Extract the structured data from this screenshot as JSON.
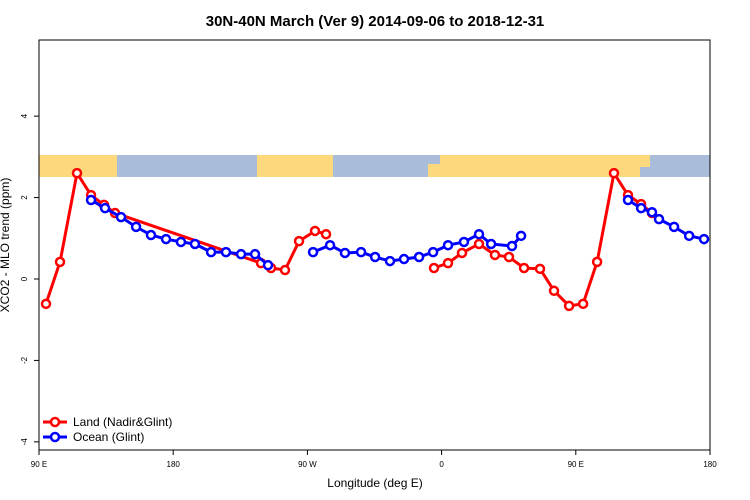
{
  "chart_data": {
    "type": "line",
    "title": "30N-40N March (Ver 9)   2014-09-06 to 2018-12-31",
    "x_label": "Longitude (deg E)",
    "y_label": "XCO2 - MLO trend (ppm)",
    "xlim": [
      90,
      540
    ],
    "xticks": [
      {
        "value": 90,
        "label": "90 E"
      },
      {
        "value": 180,
        "label": "180"
      },
      {
        "value": 270,
        "label": "90 W"
      },
      {
        "value": 360,
        "label": "0"
      },
      {
        "value": 450,
        "label": "90 E"
      },
      {
        "value": 540,
        "label": "180"
      }
    ],
    "ylim": [
      -4.2,
      5.87
    ],
    "yticks": [
      -4,
      -2,
      0,
      2,
      4
    ],
    "legend": "bottom-left",
    "series": [
      {
        "name": "Land (Nadir&Glint)",
        "color": "#ff0000",
        "x": [
          94.7,
          104.1,
          115.5,
          124.9,
          133.6,
          141,
          238.9,
          245.6,
          255,
          264.4,
          275.1,
          282.5,
          null,
          354.9,
          364.3,
          373.7,
          385.1,
          395.8,
          405.2,
          415.3,
          426,
          435.4,
          445.5,
          454.9,
          464.3,
          475.6,
          485,
          493.8,
          501.1
        ],
        "values": [
          -0.61,
          0.42,
          2.6,
          2.06,
          1.82,
          1.62,
          0.39,
          0.27,
          0.22,
          0.93,
          1.18,
          1.1,
          null,
          0.27,
          0.39,
          0.64,
          0.86,
          0.59,
          0.54,
          0.27,
          0.25,
          -0.29,
          -0.66,
          -0.61,
          0.42,
          2.6,
          2.06,
          1.84,
          1.62
        ]
      },
      {
        "name": "Ocean (Glint)",
        "color": "#0000ff",
        "x": [
          124.9,
          134.3,
          145,
          155.1,
          165.1,
          175.2,
          185.2,
          194.6,
          205.4,
          215.4,
          225.5,
          234.9,
          243.6,
          null,
          273.8,
          285.2,
          295.2,
          306,
          315.4,
          325.4,
          334.8,
          344.9,
          354.3,
          364.3,
          375,
          385.1,
          393.2,
          407.2,
          413.3,
          null,
          485,
          493.8,
          501.1,
          505.8,
          515.9,
          526,
          536
        ],
        "values": [
          1.94,
          1.74,
          1.52,
          1.28,
          1.08,
          0.98,
          0.91,
          0.86,
          0.66,
          0.66,
          0.61,
          0.61,
          0.34,
          null,
          0.66,
          0.83,
          0.64,
          0.66,
          0.54,
          0.44,
          0.49,
          0.54,
          0.66,
          0.83,
          0.91,
          1.1,
          0.86,
          0.81,
          1.06,
          null,
          1.94,
          1.74,
          1.64,
          1.47,
          1.28,
          1.06,
          0.98
        ]
      }
    ]
  }
}
